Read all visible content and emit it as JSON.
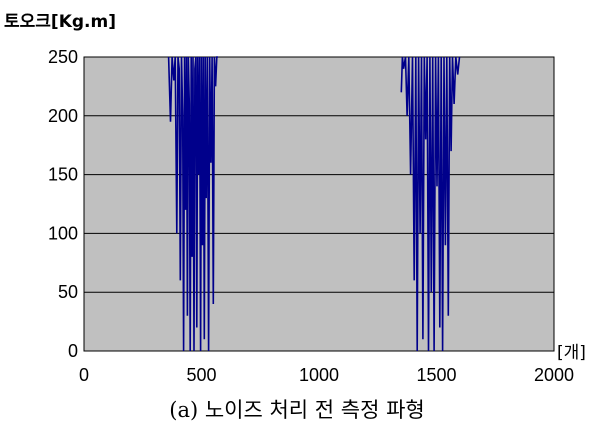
{
  "chart_data": {
    "type": "line",
    "title": "",
    "ylabel": "토오크[Kg.m]",
    "xlabel": "[개]",
    "caption": "(a) 노이즈 처리 전 측정 파형",
    "xlim": [
      0,
      2000
    ],
    "ylim": [
      0,
      250
    ],
    "x_ticks": [
      "0",
      "500",
      "1000",
      "1500",
      "2000"
    ],
    "y_ticks": [
      "0",
      "50",
      "100",
      "150",
      "200",
      "250"
    ],
    "grid": "horizontal",
    "plot_background": "#c0c0c0",
    "line_color": "#00008b",
    "series": [
      {
        "x": [
          0,
          360,
          368,
          375,
          382,
          388,
          395,
          400,
          405,
          410,
          415,
          420,
          424,
          428,
          432,
          436,
          440,
          444,
          448,
          452,
          456,
          460,
          464,
          468,
          472,
          476,
          480,
          484,
          488,
          492,
          496,
          500,
          504,
          508,
          512,
          516,
          520,
          525,
          530,
          535,
          540,
          545,
          550,
          555,
          560,
          565,
          570,
          2000
        ],
        "y": [
          null,
          250,
          195,
          250,
          230,
          250,
          100,
          250,
          240,
          60,
          250,
          200,
          0,
          250,
          120,
          250,
          30,
          250,
          210,
          0,
          250,
          80,
          250,
          0,
          240,
          250,
          20,
          250,
          150,
          250,
          0,
          250,
          90,
          250,
          10,
          250,
          130,
          250,
          0,
          250,
          160,
          250,
          40,
          250,
          225,
          250,
          250,
          null
        ]
      },
      {
        "x": [
          1350,
          1355,
          1360,
          1368,
          1375,
          1382,
          1390,
          1398,
          1405,
          1412,
          1418,
          1424,
          1430,
          1436,
          1442,
          1448,
          1454,
          1460,
          1466,
          1472,
          1478,
          1484,
          1490,
          1496,
          1502,
          1508,
          1514,
          1520,
          1526,
          1532,
          1538,
          1544,
          1550,
          1556,
          1562,
          1568,
          1575,
          1582,
          1590,
          1598
        ],
        "y": [
          220,
          250,
          240,
          250,
          200,
          250,
          150,
          250,
          60,
          250,
          0,
          250,
          100,
          250,
          10,
          250,
          180,
          250,
          0,
          250,
          50,
          250,
          0,
          250,
          140,
          250,
          20,
          250,
          0,
          250,
          90,
          250,
          30,
          250,
          170,
          250,
          210,
          250,
          235,
          250
        ]
      }
    ]
  }
}
